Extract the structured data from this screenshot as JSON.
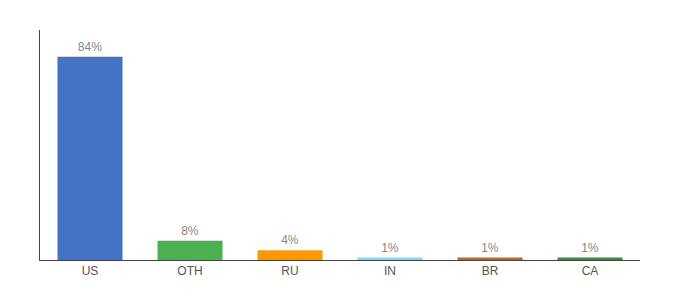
{
  "chart_data": {
    "type": "bar",
    "categories": [
      "US",
      "OTH",
      "RU",
      "IN",
      "BR",
      "CA"
    ],
    "values": [
      84,
      8,
      4,
      1,
      1,
      1
    ],
    "value_labels": [
      "84%",
      "8%",
      "4%",
      "1%",
      "1%",
      "1%"
    ],
    "colors": [
      "#4472c4",
      "#4caf50",
      "#ff9800",
      "#81d4fa",
      "#c0622a",
      "#3a8a3a"
    ],
    "ylim": [
      0,
      95
    ],
    "yticks": [],
    "tick_labels": "x",
    "data_labels": true,
    "grid": false
  }
}
